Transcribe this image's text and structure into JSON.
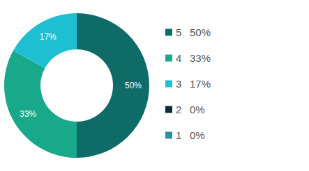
{
  "chart_data": {
    "type": "pie",
    "categories": [
      "5",
      "4",
      "3",
      "2",
      "1"
    ],
    "values": [
      50,
      33,
      17,
      0,
      0
    ],
    "value_labels": [
      "50%",
      "33%",
      "17%",
      "0%",
      "0%"
    ],
    "colors": [
      "#0f6b68",
      "#18a88a",
      "#1fbfd2",
      "#0b2a33",
      "#2b8fa3"
    ],
    "data_labels": true,
    "legend": "right"
  }
}
